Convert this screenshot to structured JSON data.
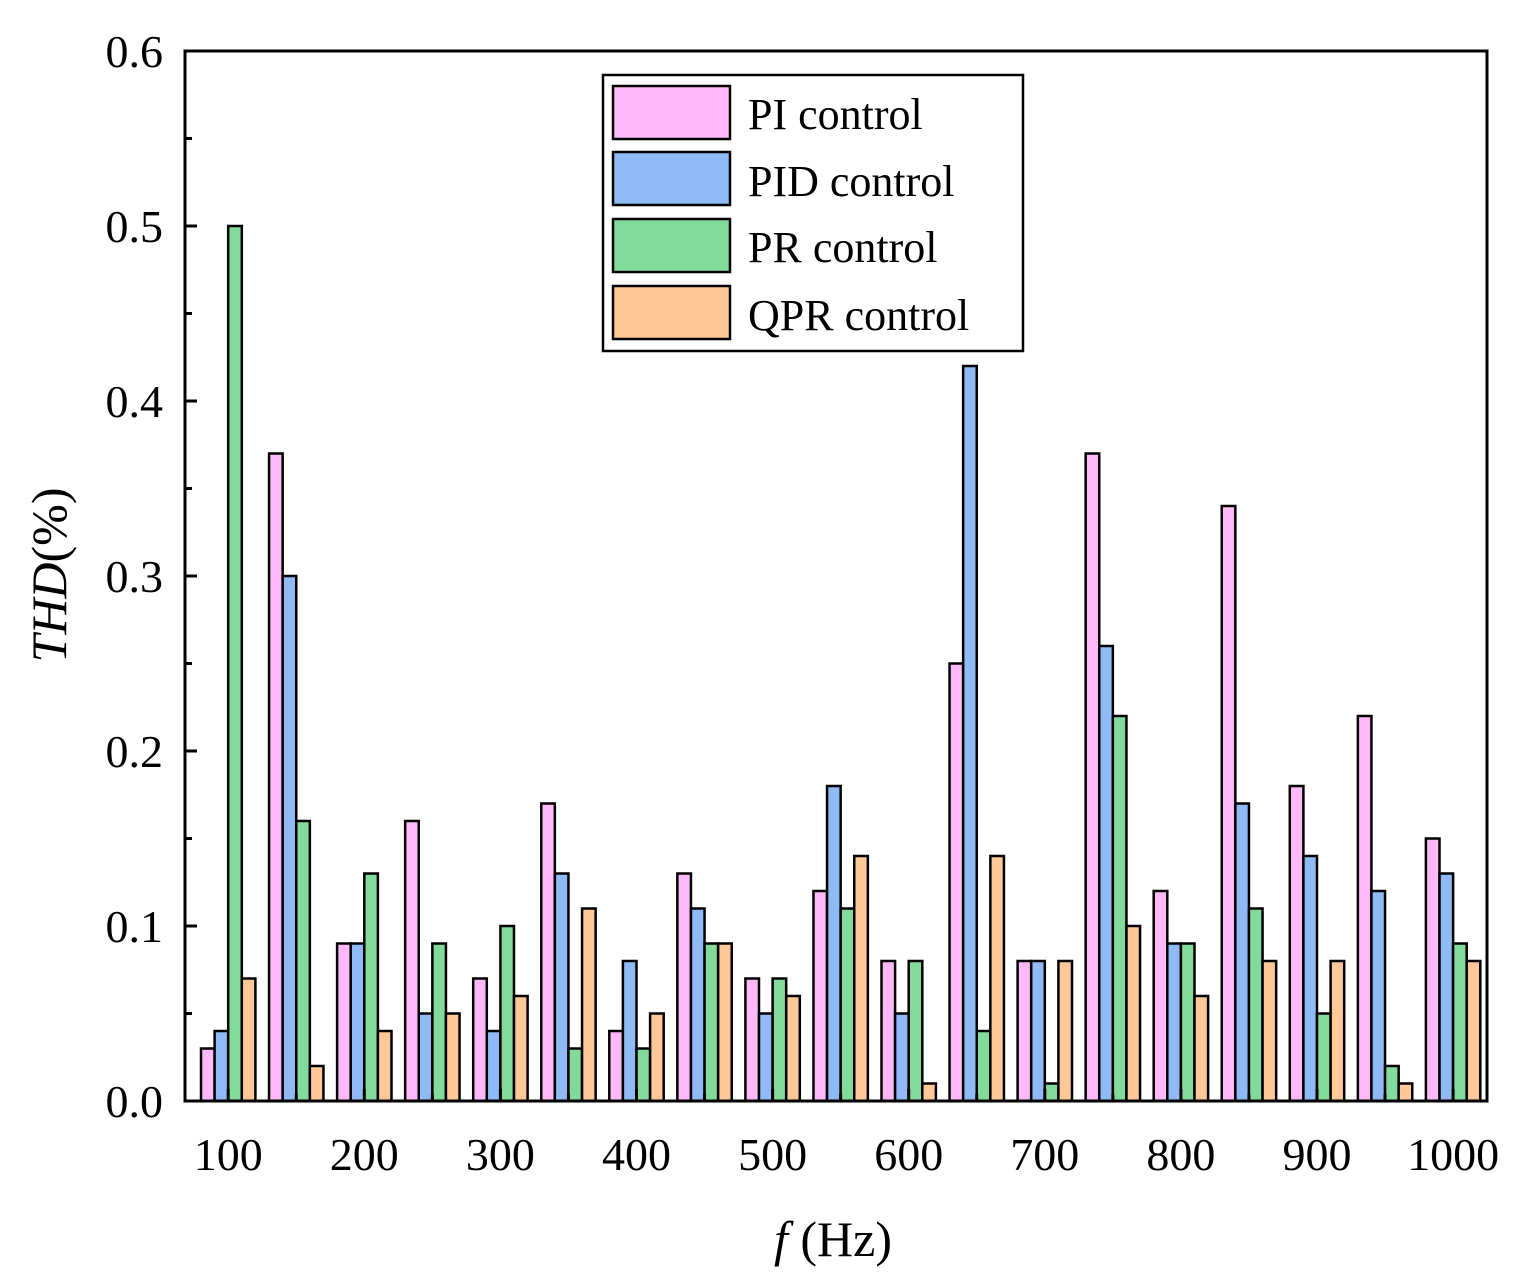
{
  "chart_data": {
    "type": "bar",
    "title": "",
    "xlabel_italic": "f",
    "xlabel_rest": " (Hz)",
    "ylabel_italic": "THD",
    "ylabel_rest": "(%)",
    "ylim": [
      0,
      0.6
    ],
    "yticks": [
      "0.0",
      "0.1",
      "0.2",
      "0.3",
      "0.4",
      "0.5",
      "0.6"
    ],
    "xtick_labels": [
      "100",
      "200",
      "300",
      "400",
      "500",
      "600",
      "700",
      "800",
      "900",
      "1000"
    ],
    "groups": 19,
    "legend_position": "top-center",
    "series": [
      {
        "name": "PI control",
        "color": "#FFB8F8",
        "values": [
          0.03,
          0.37,
          0.09,
          0.16,
          0.07,
          0.17,
          0.04,
          0.13,
          0.07,
          0.12,
          0.08,
          0.25,
          0.08,
          0.37,
          0.12,
          0.34,
          0.18,
          0.22,
          0.15
        ]
      },
      {
        "name": "PID control",
        "color": "#8FBAF5",
        "values": [
          0.04,
          0.3,
          0.09,
          0.05,
          0.04,
          0.13,
          0.08,
          0.11,
          0.05,
          0.18,
          0.05,
          0.42,
          0.08,
          0.26,
          0.09,
          0.17,
          0.14,
          0.12,
          0.13
        ]
      },
      {
        "name": "PR control",
        "color": "#82DB9A",
        "values": [
          0.5,
          0.16,
          0.13,
          0.09,
          0.1,
          0.03,
          0.03,
          0.09,
          0.07,
          0.11,
          0.08,
          0.04,
          0.01,
          0.22,
          0.09,
          0.11,
          0.05,
          0.02,
          0.09
        ]
      },
      {
        "name": "QPR control",
        "color": "#FFC896",
        "values": [
          0.07,
          0.02,
          0.04,
          0.05,
          0.06,
          0.11,
          0.05,
          0.09,
          0.06,
          0.14,
          0.01,
          0.14,
          0.08,
          0.1,
          0.06,
          0.08,
          0.08,
          0.01,
          0.08
        ]
      }
    ]
  }
}
